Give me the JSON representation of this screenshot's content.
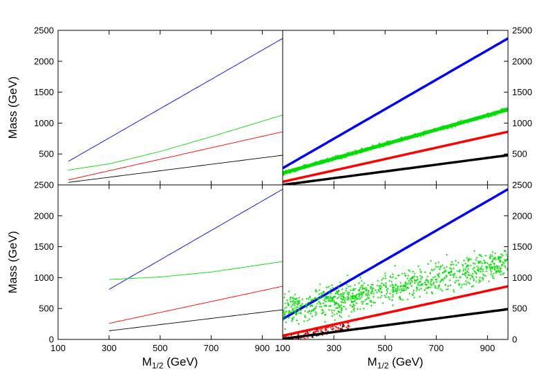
{
  "chart_data": {
    "type": "line",
    "layout": "2x2 grid of panels sharing axes",
    "xlabel": {
      "main": "M",
      "sub": "1/2",
      "rest": " (GeV)"
    },
    "ylabel": "Mass (GeV)",
    "xlim": [
      100,
      980
    ],
    "ylim": [
      0,
      2500
    ],
    "x_ticks": [
      100,
      300,
      500,
      700,
      900
    ],
    "y_ticks": [
      0,
      500,
      1000,
      1500,
      2000,
      2500
    ],
    "grid": false,
    "legend": "none",
    "series_colors": {
      "blue": "#0000ff",
      "green": "#00dd00",
      "red": "#ff0000",
      "black": "#000000"
    },
    "panels": [
      {
        "position": "top-left",
        "style": "thin lines",
        "series": [
          {
            "color": "blue",
            "x": [
              140,
              980
            ],
            "y": [
              380,
              2370
            ]
          },
          {
            "color": "green",
            "x": [
              140,
              300,
              500,
              700,
              980
            ],
            "y": [
              240,
              340,
              540,
              780,
              1130
            ]
          },
          {
            "color": "red",
            "x": [
              140,
              980
            ],
            "y": [
              80,
              860
            ]
          },
          {
            "color": "black",
            "x": [
              140,
              980
            ],
            "y": [
              40,
              480
            ]
          }
        ]
      },
      {
        "position": "top-right",
        "style": "thick lines / dense scatter",
        "series": [
          {
            "color": "blue",
            "x": [
              100,
              980
            ],
            "y": [
              270,
              2370
            ]
          },
          {
            "color": "green",
            "x": [
              100,
              980
            ],
            "y": [
              190,
              1220
            ],
            "scatter_band": 30
          },
          {
            "color": "red",
            "x": [
              100,
              980
            ],
            "y": [
              50,
              860
            ]
          },
          {
            "color": "black",
            "x": [
              100,
              980
            ],
            "y": [
              0,
              480
            ]
          }
        ]
      },
      {
        "position": "bottom-left",
        "style": "thin lines",
        "series": [
          {
            "color": "blue",
            "x": [
              300,
              980
            ],
            "y": [
              810,
              2430
            ]
          },
          {
            "color": "green",
            "x": [
              300,
              500,
              700,
              980
            ],
            "y": [
              970,
              1010,
              1090,
              1260
            ]
          },
          {
            "color": "red",
            "x": [
              300,
              980
            ],
            "y": [
              260,
              860
            ]
          },
          {
            "color": "black",
            "x": [
              300,
              980
            ],
            "y": [
              140,
              480
            ]
          }
        ]
      },
      {
        "position": "bottom-right",
        "style": "thick lines / scatter cloud",
        "series": [
          {
            "color": "blue",
            "x": [
              100,
              980
            ],
            "y": [
              330,
              2430
            ]
          },
          {
            "color": "green",
            "x": [
              100,
              980
            ],
            "y": [
              450,
              1250
            ],
            "scatter_band": 450,
            "points": 900
          },
          {
            "color": "red",
            "x": [
              100,
              980
            ],
            "y": [
              60,
              860
            ],
            "scatter_low_region": [
              100,
              360
            ]
          },
          {
            "color": "black",
            "x": [
              100,
              980
            ],
            "y": [
              10,
              490
            ]
          }
        ]
      }
    ]
  }
}
